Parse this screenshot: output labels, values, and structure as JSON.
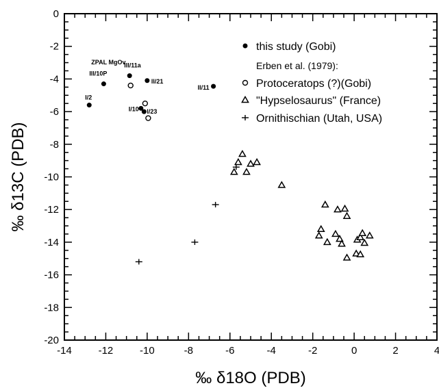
{
  "chart_data": {
    "type": "scatter",
    "title": "",
    "xlabel": "‰ δ18O (PDB)",
    "ylabel": "‰ δ13C (PDB)",
    "xlim": [
      -14,
      4
    ],
    "ylim": [
      -20,
      0
    ],
    "x_ticks": [
      -14,
      -12,
      -10,
      -8,
      -6,
      -4,
      -2,
      0,
      2,
      4
    ],
    "y_ticks": [
      0,
      -2,
      -4,
      -6,
      -8,
      -10,
      -12,
      -14,
      -16,
      -18,
      -20
    ],
    "x_tick_labels": [
      "-14",
      "-12",
      "-10",
      "-8",
      "-6",
      "-4",
      "-2",
      "0",
      "2",
      "4"
    ],
    "y_tick_labels": [
      "0",
      "-2",
      "-4",
      "-6",
      "-8",
      "-10",
      "-12",
      "-14",
      "-16",
      "-18",
      "-20"
    ],
    "grid": false,
    "legend_position": "top-right",
    "legend_header": "Erben et al. (1979):",
    "series": [
      {
        "name": "this study (Gobi)",
        "marker": "filled-circle",
        "points": [
          {
            "x": -12.8,
            "y": -5.6,
            "label": "I/2"
          },
          {
            "x": -12.1,
            "y": -4.3,
            "label": "III/10P"
          },
          {
            "x": -10.85,
            "y": -3.8,
            "label": "III/11a"
          },
          {
            "x": -10.0,
            "y": -4.1,
            "label": "II/21"
          },
          {
            "x": -10.3,
            "y": -5.8,
            "label": "I/10"
          },
          {
            "x": -10.15,
            "y": -6.0,
            "label": "I/23"
          },
          {
            "x": -6.8,
            "y": -4.45,
            "label": "II/11"
          }
        ]
      },
      {
        "name": "Protoceratops (?)(Gobi)",
        "marker": "open-circle",
        "points": [
          {
            "x": -10.8,
            "y": -4.4
          },
          {
            "x": -10.1,
            "y": -5.5
          },
          {
            "x": -9.95,
            "y": -6.4
          }
        ]
      },
      {
        "name": "\"Hypselosaurus\" (France)",
        "marker": "open-triangle",
        "points": [
          {
            "x": -5.4,
            "y": -8.6
          },
          {
            "x": -5.6,
            "y": -9.1
          },
          {
            "x": -5.0,
            "y": -9.2
          },
          {
            "x": -4.7,
            "y": -9.1
          },
          {
            "x": -5.8,
            "y": -9.7
          },
          {
            "x": -5.2,
            "y": -9.7
          },
          {
            "x": -3.5,
            "y": -10.5
          },
          {
            "x": -1.4,
            "y": -11.7
          },
          {
            "x": -0.8,
            "y": -12.0
          },
          {
            "x": -0.45,
            "y": -11.95
          },
          {
            "x": -0.35,
            "y": -12.4
          },
          {
            "x": -1.6,
            "y": -13.2
          },
          {
            "x": -1.7,
            "y": -13.6
          },
          {
            "x": -1.3,
            "y": -14.0
          },
          {
            "x": -0.9,
            "y": -13.5
          },
          {
            "x": -0.7,
            "y": -13.8
          },
          {
            "x": -0.6,
            "y": -14.1
          },
          {
            "x": -0.35,
            "y": -14.95
          },
          {
            "x": 0.15,
            "y": -13.85
          },
          {
            "x": 0.3,
            "y": -13.7
          },
          {
            "x": 0.4,
            "y": -13.45
          },
          {
            "x": 0.5,
            "y": -14.05
          },
          {
            "x": 0.75,
            "y": -13.6
          },
          {
            "x": 0.1,
            "y": -14.7
          },
          {
            "x": 0.3,
            "y": -14.75
          }
        ]
      },
      {
        "name": "Ornithischian (Utah, USA)",
        "marker": "plus",
        "points": [
          {
            "x": -5.7,
            "y": -9.4
          },
          {
            "x": -6.7,
            "y": -11.7
          },
          {
            "x": -7.7,
            "y": -14.0
          },
          {
            "x": -10.4,
            "y": -15.2
          }
        ]
      }
    ],
    "annotations": [
      {
        "text": "ZPAL MgOv",
        "x": -12.7,
        "y": -3.1
      }
    ]
  }
}
